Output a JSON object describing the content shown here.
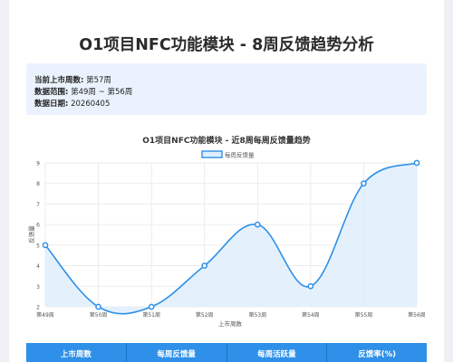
{
  "page_title": "O1项目NFC功能模块 - 8周反馈趋势分析",
  "info": {
    "current_week_label": "当前上市周数:",
    "current_week_value": "第57周",
    "range_label": "数据范围:",
    "range_value": "第49周 ~ 第56周",
    "date_label": "数据日期:",
    "date_value": "20260405"
  },
  "colors": {
    "line": "#2e90e8",
    "area": "#ddeefc",
    "header": "#2e90e8"
  },
  "chart_data": {
    "type": "line",
    "title": "O1项目NFC功能模块 - 近8周每周反馈量趋势",
    "xlabel": "上市周数",
    "ylabel": "反馈量",
    "categories": [
      "第49周",
      "第50周",
      "第51周",
      "第52周",
      "第53周",
      "第54周",
      "第55周",
      "第56周"
    ],
    "series": [
      {
        "name": "每周反馈量",
        "values": [
          5,
          2,
          2,
          4,
          6,
          3,
          8,
          9
        ]
      }
    ],
    "ylim": [
      2,
      9
    ],
    "yticks": [
      2,
      3,
      4,
      5,
      6,
      7,
      8,
      9
    ],
    "grid": true,
    "legend": "top-center"
  },
  "table": {
    "headers": [
      "上市周数",
      "每周反馈量",
      "每周活跃量",
      "反馈率(%)"
    ]
  }
}
